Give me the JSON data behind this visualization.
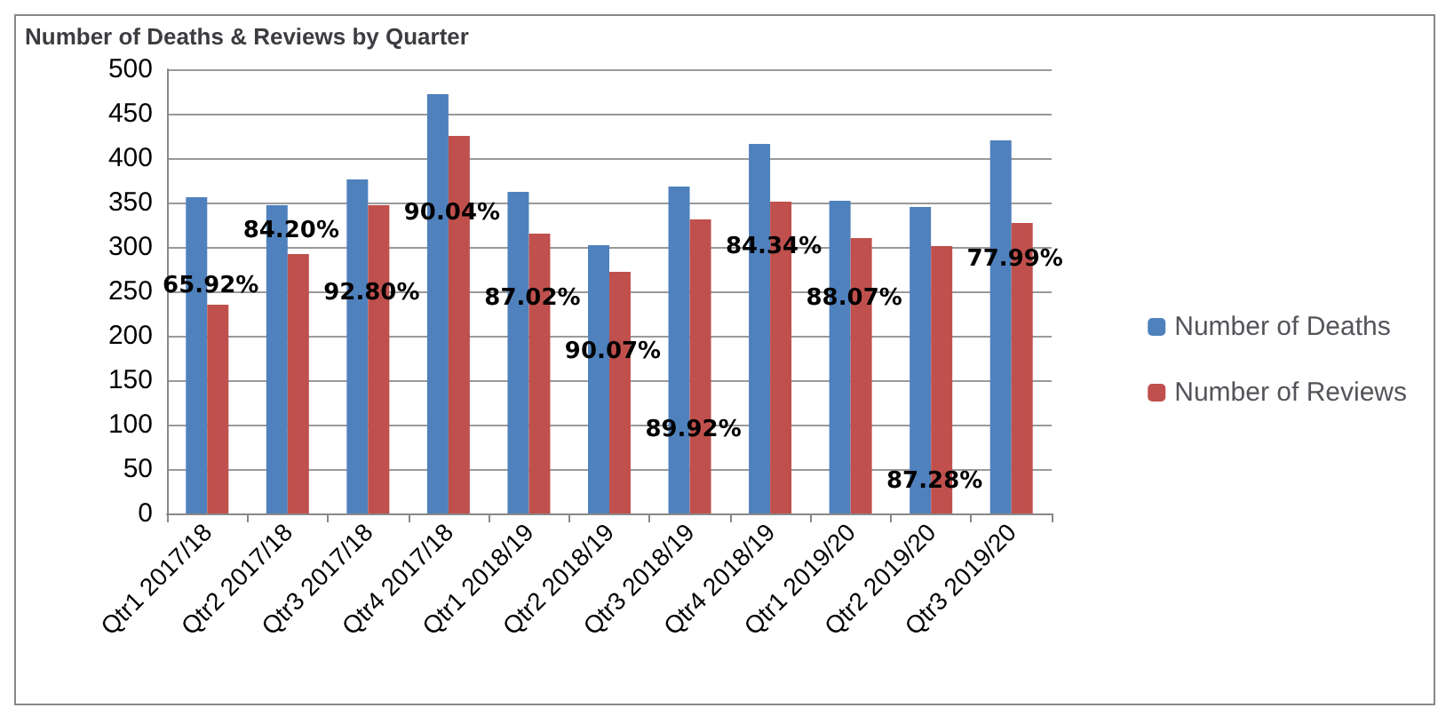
{
  "chart_data": {
    "type": "bar",
    "title": "Number of Deaths & Reviews by Quarter",
    "categories": [
      "Qtr1 2017/18",
      "Qtr2 2017/18",
      "Qtr3 2017/18",
      "Qtr4 2017/18",
      "Qtr1 2018/19",
      "Qtr2 2018/19",
      "Qtr3 2018/19",
      "Qtr4 2018/19",
      "Qtr1 2019/20",
      "Qtr2 2019/20",
      "Qtr3 2019/20"
    ],
    "series": [
      {
        "name": "Number of Deaths",
        "color": "#4f81bd",
        "values": [
          356,
          347,
          376,
          472,
          362,
          302,
          368,
          416,
          352,
          345,
          420
        ]
      },
      {
        "name": "Number of Reviews",
        "color": "#c0504d",
        "values": [
          235,
          292,
          347,
          425,
          315,
          272,
          331,
          351,
          310,
          301,
          327
        ]
      }
    ],
    "ylim": [
      0,
      500
    ],
    "yticks": [
      0,
      50,
      100,
      150,
      200,
      250,
      300,
      350,
      400,
      450,
      500
    ],
    "grid": "y",
    "legend": "right",
    "annotations": [
      {
        "text": "65.92%",
        "x": "Qtr1 2017/18",
        "y": 256
      },
      {
        "text": "84.20%",
        "x": "Qtr2 2017/18",
        "y": 318
      },
      {
        "text": "92.80%",
        "x": "Qtr3 2017/18",
        "y": 248
      },
      {
        "text": "90.04%",
        "x": "Qtr4 2017/18",
        "y": 338
      },
      {
        "text": "87.02%",
        "x": "Qtr1 2018/19",
        "y": 242
      },
      {
        "text": "90.07%",
        "x": "Qtr2 2018/19",
        "y": 182
      },
      {
        "text": "89.92%",
        "x": "Qtr3 2018/19",
        "y": 94
      },
      {
        "text": "84.34%",
        "x": "Qtr4 2018/19",
        "y": 300
      },
      {
        "text": "88.07%",
        "x": "Qtr1 2019/20",
        "y": 242
      },
      {
        "text": "87.28%",
        "x": "Qtr2 2019/20",
        "y": 36
      },
      {
        "text": "77.99%",
        "x": "Qtr3 2019/20",
        "y": 286
      }
    ]
  }
}
